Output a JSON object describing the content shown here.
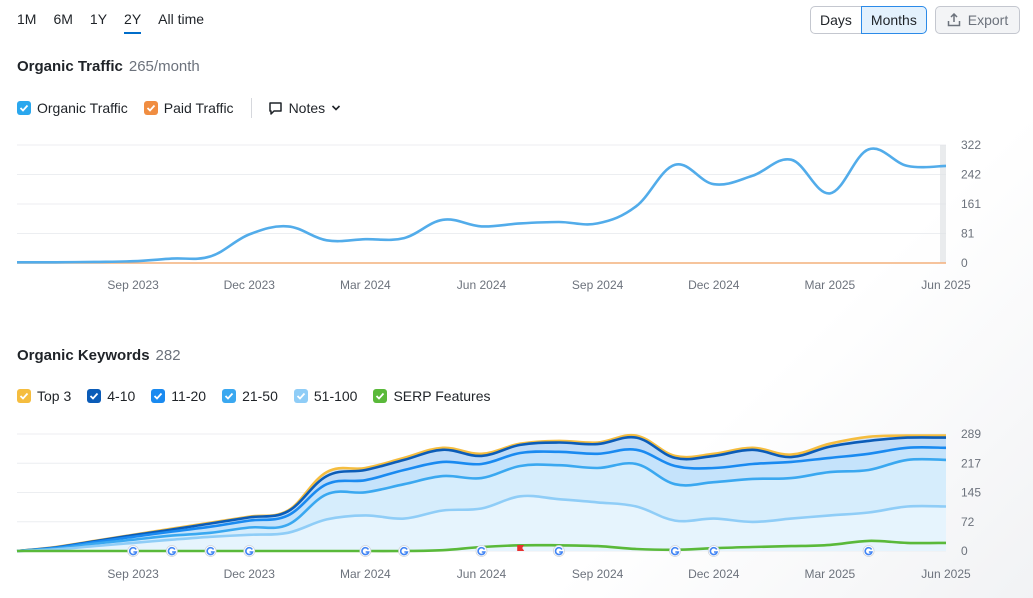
{
  "period_tabs": [
    "1M",
    "6M",
    "1Y",
    "2Y",
    "All time"
  ],
  "active_period": "2Y",
  "granularity": {
    "days_label": "Days",
    "months_label": "Months",
    "selected": "Months"
  },
  "export_label": "Export",
  "traffic": {
    "title": "Organic Traffic",
    "value": "265/month",
    "legend": [
      {
        "label": "Organic Traffic",
        "color": "#2aa7ee",
        "checked": true
      },
      {
        "label": "Paid Traffic",
        "color": "#f08d41",
        "checked": true
      }
    ],
    "notes_label": "Notes"
  },
  "keywords": {
    "title": "Organic Keywords",
    "value": "282",
    "legend": [
      {
        "label": "Top 3",
        "color": "#f5bd3f",
        "checked": true
      },
      {
        "label": "4-10",
        "color": "#0b5cb8",
        "checked": true
      },
      {
        "label": "11-20",
        "color": "#1a8af0",
        "checked": true
      },
      {
        "label": "21-50",
        "color": "#3aa8f0",
        "checked": true
      },
      {
        "label": "51-100",
        "color": "#8fcdf7",
        "checked": true
      },
      {
        "label": "SERP Features",
        "color": "#5ab93a",
        "checked": true
      }
    ]
  },
  "chart_data": [
    {
      "type": "line",
      "title": "",
      "x_ticks": [
        "Sep 2023",
        "Dec 2023",
        "Mar 2024",
        "Jun 2024",
        "Sep 2024",
        "Dec 2024",
        "Mar 2025",
        "Jun 2025"
      ],
      "y_ticks": [
        "322",
        "242",
        "161",
        "81",
        "0"
      ],
      "ylim": [
        0,
        322
      ],
      "x": [
        "Jun 2023",
        "Jul 2023",
        "Aug 2023",
        "Sep 2023",
        "Oct 2023",
        "Nov 2023",
        "Dec 2023",
        "Jan 2024",
        "Feb 2024",
        "Mar 2024",
        "Apr 2024",
        "May 2024",
        "Jun 2024",
        "Jul 2024",
        "Aug 2024",
        "Sep 2024",
        "Oct 2024",
        "Nov 2024",
        "Dec 2024",
        "Jan 2025",
        "Feb 2025",
        "Mar 2025",
        "Apr 2025",
        "May 2025",
        "Jun 2025"
      ],
      "series": [
        {
          "name": "Organic Traffic",
          "color": "#52acea",
          "values": [
            2,
            2,
            3,
            5,
            12,
            18,
            78,
            100,
            62,
            65,
            68,
            118,
            100,
            108,
            112,
            108,
            155,
            268,
            215,
            238,
            282,
            190,
            310,
            265,
            265
          ]
        },
        {
          "name": "Paid Traffic",
          "color": "#f4b07c",
          "values": [
            0,
            0,
            0,
            0,
            0,
            0,
            0,
            0,
            0,
            0,
            0,
            0,
            0,
            0,
            0,
            0,
            0,
            0,
            0,
            0,
            0,
            0,
            0,
            0,
            0
          ]
        }
      ]
    },
    {
      "type": "area",
      "title": "",
      "x_ticks": [
        "Sep 2023",
        "Dec 2023",
        "Mar 2024",
        "Jun 2024",
        "Sep 2024",
        "Dec 2024",
        "Mar 2025",
        "Jun 2025"
      ],
      "y_ticks": [
        "289",
        "217",
        "145",
        "72",
        "0"
      ],
      "ylim": [
        0,
        289
      ],
      "x": [
        "Jun 2023",
        "Jul 2023",
        "Aug 2023",
        "Sep 2023",
        "Oct 2023",
        "Nov 2023",
        "Dec 2023",
        "Jan 2024",
        "Feb 2024",
        "Mar 2024",
        "Apr 2024",
        "May 2024",
        "Jun 2024",
        "Jul 2024",
        "Aug 2024",
        "Sep 2024",
        "Oct 2024",
        "Nov 2024",
        "Dec 2024",
        "Jan 2025",
        "Feb 2025",
        "Mar 2025",
        "Apr 2025",
        "May 2025",
        "Jun 2025"
      ],
      "series": [
        {
          "name": "Top 3",
          "color": "#f5bd3f",
          "values": [
            0,
            10,
            25,
            40,
            55,
            70,
            85,
            100,
            195,
            205,
            230,
            255,
            240,
            265,
            272,
            268,
            285,
            235,
            240,
            255,
            238,
            265,
            282,
            285,
            285
          ]
        },
        {
          "name": "4-10",
          "color": "#0b5cb8",
          "values": [
            0,
            9,
            24,
            39,
            53,
            68,
            83,
            98,
            185,
            200,
            225,
            250,
            235,
            262,
            268,
            264,
            280,
            230,
            235,
            250,
            232,
            258,
            272,
            280,
            280
          ]
        },
        {
          "name": "11-20",
          "color": "#1a8af0",
          "values": [
            0,
            8,
            22,
            35,
            48,
            60,
            75,
            88,
            165,
            175,
            200,
            220,
            215,
            242,
            245,
            240,
            250,
            210,
            205,
            215,
            220,
            230,
            240,
            255,
            255
          ]
        },
        {
          "name": "21-50",
          "color": "#3aa8f0",
          "values": [
            0,
            6,
            18,
            28,
            38,
            45,
            58,
            65,
            140,
            145,
            165,
            185,
            180,
            210,
            212,
            205,
            215,
            165,
            170,
            178,
            180,
            195,
            200,
            225,
            225
          ]
        },
        {
          "name": "51-100",
          "color": "#8fcdf7",
          "values": [
            0,
            4,
            12,
            20,
            28,
            35,
            40,
            45,
            78,
            88,
            80,
            100,
            105,
            135,
            128,
            120,
            110,
            75,
            80,
            72,
            80,
            88,
            95,
            110,
            110
          ]
        },
        {
          "name": "SERP Features",
          "color": "#5ab93a",
          "values": [
            0,
            0,
            0,
            0,
            0,
            0,
            0,
            0,
            0,
            0,
            0,
            2,
            10,
            14,
            14,
            12,
            5,
            3,
            7,
            10,
            12,
            15,
            25,
            20,
            20
          ]
        }
      ],
      "notes_markers": [
        "Sep 2023",
        "Oct 2023",
        "Nov 2023",
        "Dec 2023",
        "Mar 2024",
        "Apr 2024",
        "Jun 2024",
        "Aug 2024",
        "Nov 2024",
        "Dec 2024",
        "Apr 2025"
      ],
      "flag_marker": "Jul 2024"
    }
  ]
}
